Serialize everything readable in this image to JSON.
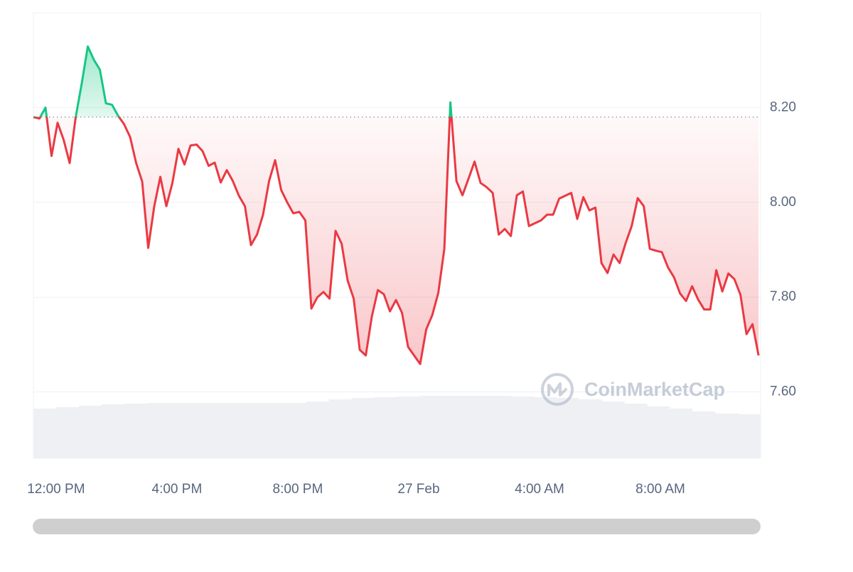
{
  "chart_data": {
    "type": "line",
    "x": [
      -45,
      -33,
      -21,
      -9,
      3,
      15,
      27,
      39,
      51,
      63,
      75,
      87,
      99,
      111,
      123,
      135,
      147,
      159,
      171,
      183,
      195,
      207,
      219,
      231,
      243,
      255,
      267,
      279,
      291,
      303,
      315,
      327,
      339,
      351,
      363,
      375,
      387,
      399,
      411,
      423,
      435,
      447,
      459,
      471,
      483,
      495,
      507,
      519,
      531,
      543,
      555,
      567,
      579,
      591,
      603,
      615,
      627,
      639,
      651,
      663,
      675,
      687,
      699,
      711,
      723,
      735,
      747,
      759,
      771,
      783,
      795,
      807,
      819,
      831,
      843,
      855,
      867,
      879,
      891,
      903,
      915,
      927,
      939,
      951,
      963,
      975,
      987,
      999,
      1011,
      1023,
      1035,
      1047,
      1059,
      1071,
      1083,
      1095,
      1107,
      1119,
      1131,
      1143,
      1155,
      1167,
      1179,
      1191,
      1203,
      1215,
      1227,
      1239,
      1251,
      1263,
      1275,
      1287,
      1299,
      1311,
      1323,
      1335,
      1347,
      1359,
      1371,
      1383,
      1395
    ],
    "values": [
      8.18,
      8.177,
      8.2,
      8.098,
      8.168,
      8.132,
      8.083,
      8.18,
      8.251,
      8.329,
      8.301,
      8.28,
      8.209,
      8.206,
      8.183,
      8.165,
      8.138,
      8.083,
      8.044,
      7.904,
      7.992,
      8.054,
      7.992,
      8.041,
      8.113,
      8.08,
      8.12,
      8.122,
      8.108,
      8.077,
      8.084,
      8.042,
      8.068,
      8.045,
      8.014,
      7.992,
      7.91,
      7.932,
      7.974,
      8.045,
      8.089,
      8.026,
      8.0,
      7.977,
      7.98,
      7.962,
      7.776,
      7.8,
      7.811,
      7.797,
      7.94,
      7.913,
      7.835,
      7.797,
      7.689,
      7.677,
      7.759,
      7.815,
      7.806,
      7.77,
      7.794,
      7.767,
      7.695,
      7.677,
      7.659,
      7.732,
      7.762,
      7.809,
      7.902,
      8.211,
      8.045,
      8.015,
      8.05,
      8.086,
      8.041,
      8.032,
      8.02,
      7.932,
      7.944,
      7.929,
      8.015,
      8.023,
      7.95,
      7.956,
      7.962,
      7.974,
      7.974,
      8.008,
      8.014,
      8.02,
      7.965,
      8.011,
      7.983,
      7.989,
      7.872,
      7.851,
      7.89,
      7.872,
      7.914,
      7.95,
      8.009,
      7.992,
      7.902,
      7.898,
      7.895,
      7.863,
      7.842,
      7.808,
      7.792,
      7.823,
      7.795,
      7.774,
      7.774,
      7.857,
      7.812,
      7.85,
      7.838,
      7.805,
      7.722,
      7.743,
      7.677
    ],
    "baseline": 8.18,
    "up_color": "#16c784",
    "down_color": "#ea3943",
    "xlim": [
      -45,
      1399
    ],
    "xticks": [
      {
        "value": 0,
        "label": "12:00 PM"
      },
      {
        "value": 240,
        "label": "4:00 PM"
      },
      {
        "value": 480,
        "label": "8:00 PM"
      },
      {
        "value": 720,
        "label": "27 Feb"
      },
      {
        "value": 960,
        "label": "4:00 AM"
      },
      {
        "value": 1200,
        "label": "8:00 AM"
      }
    ],
    "ylim": [
      7.46,
      8.4
    ],
    "yticks": [
      {
        "value": 7.6,
        "label": "7.60"
      },
      {
        "value": 7.8,
        "label": "7.80"
      },
      {
        "value": 8.0,
        "label": "8.00"
      },
      {
        "value": 8.2,
        "label": "8.20"
      }
    ],
    "grid": true,
    "volume": {
      "values": [
        70,
        72,
        74,
        76,
        77,
        78,
        78,
        78,
        78,
        78,
        78,
        78,
        80,
        83,
        85,
        86,
        87,
        88,
        88,
        88,
        88,
        87,
        86,
        85,
        83,
        80,
        77,
        73,
        70,
        66,
        63,
        62
      ],
      "color": "#eef0f4",
      "lim": [
        0,
        100
      ]
    },
    "watermark": "CoinMarketCap"
  }
}
